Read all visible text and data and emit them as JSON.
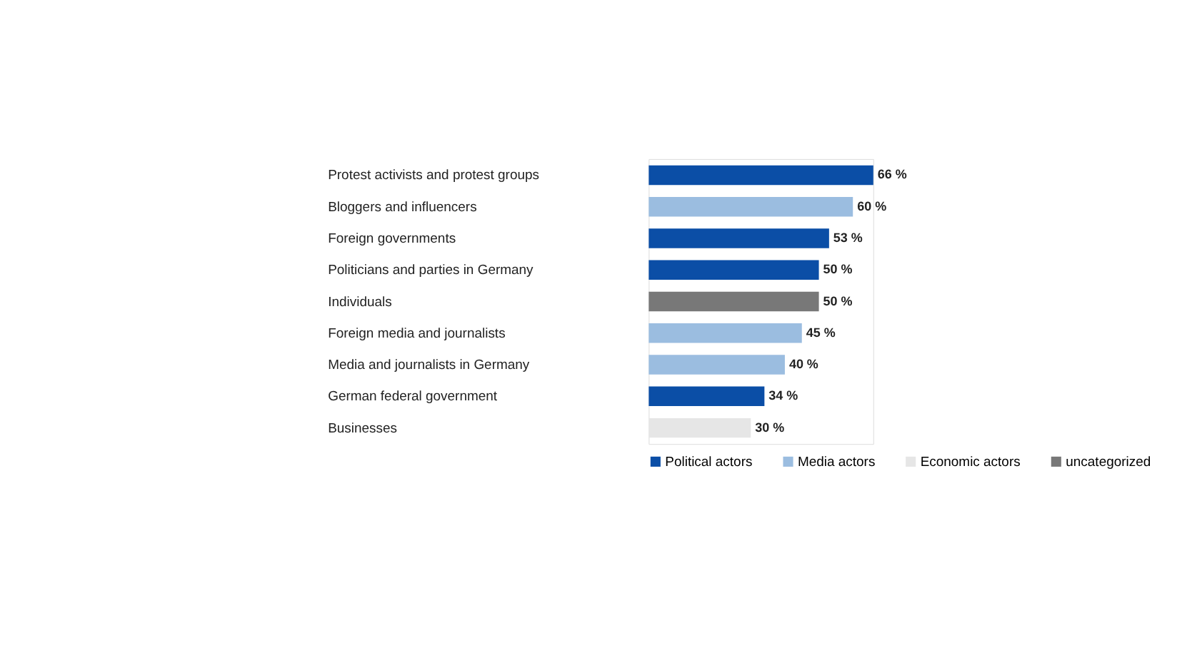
{
  "chart_data": {
    "type": "bar",
    "orientation": "horizontal",
    "grid": false,
    "legend": "bottom",
    "categories": [
      "Protest activists and protest groups",
      "Bloggers and influencers",
      "Foreign governments",
      "Politicians and parties in Germany",
      "Individuals",
      "Foreign media and journalists",
      "Media and journalists in Germany",
      "German federal government",
      "Businesses"
    ],
    "series": [
      {
        "name": "Political actors",
        "color": "#0b4ea6",
        "values": [
          66,
          null,
          53,
          50,
          null,
          null,
          null,
          34,
          null
        ],
        "value_labels": [
          "66 %",
          null,
          "53 %",
          "50 %",
          null,
          null,
          null,
          "34 %",
          null
        ]
      },
      {
        "name": "Media actors",
        "color": "#9bbde0",
        "values": [
          null,
          60,
          null,
          null,
          null,
          45,
          40,
          null,
          null
        ],
        "value_labels": [
          null,
          "60 %",
          null,
          null,
          null,
          "45 %",
          "40 %",
          null,
          null
        ]
      },
      {
        "name": "Economic actors",
        "color": "#e6e6e6",
        "values": [
          null,
          null,
          null,
          null,
          null,
          null,
          null,
          null,
          30
        ],
        "value_labels": [
          null,
          null,
          null,
          null,
          null,
          null,
          null,
          null,
          "30 %"
        ]
      },
      {
        "name": "uncategorized",
        "color": "#787878",
        "values": [
          null,
          null,
          null,
          null,
          50,
          null,
          null,
          null,
          null
        ],
        "value_labels": [
          null,
          null,
          null,
          null,
          "50 %",
          null,
          null,
          null,
          null
        ]
      }
    ]
  }
}
